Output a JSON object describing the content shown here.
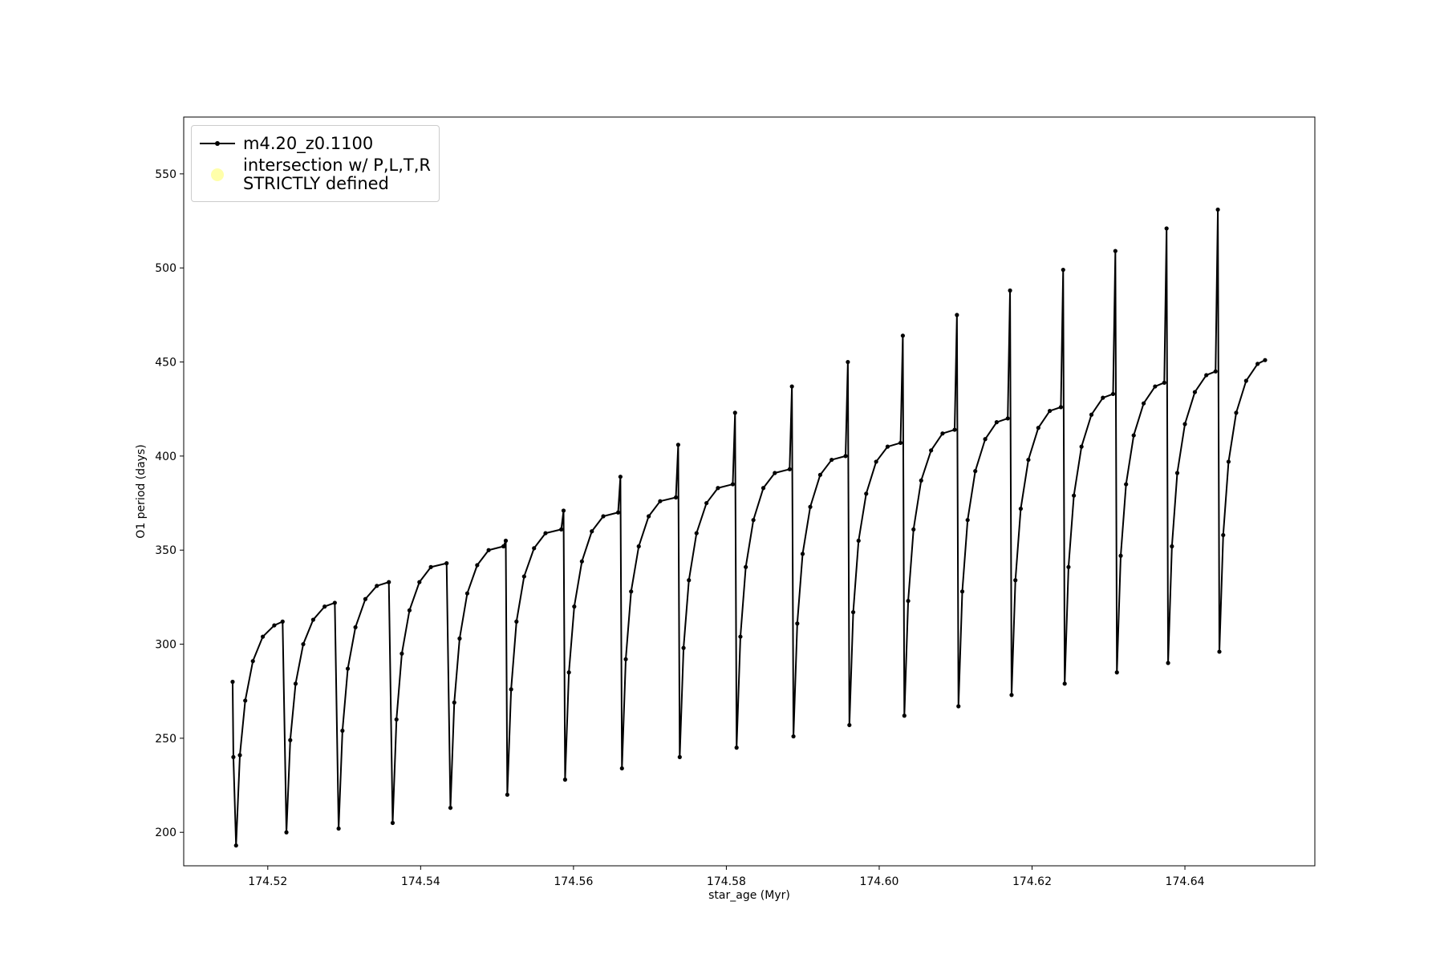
{
  "chart_data": {
    "type": "line",
    "xlabel": "star_age (Myr)",
    "ylabel": "O1 period (days)",
    "xlim": [
      174.509,
      174.657
    ],
    "ylim": [
      182.2,
      580.2
    ],
    "xticks": [
      174.52,
      174.54,
      174.56,
      174.58,
      {
        "value": 174.6,
        "label": "174.60"
      },
      174.62,
      174.64
    ],
    "yticks": [
      200,
      250,
      300,
      350,
      400,
      450,
      500,
      550
    ],
    "legend": "upper left",
    "series": [
      {
        "name": "m4.20_z0.1100",
        "color": "#000000",
        "marker": "dot",
        "x": [
          174.5154,
          174.5155,
          174.51585,
          174.51635,
          174.51705,
          174.51805,
          174.51935,
          174.52085,
          174.52194,
          174.52244,
          174.52294,
          174.52364,
          174.52464,
          174.52594,
          174.52744,
          174.52877,
          174.52927,
          174.52977,
          174.53047,
          174.53147,
          174.53277,
          174.53427,
          174.53584,
          174.53634,
          174.53684,
          174.53754,
          174.53854,
          174.53984,
          174.54134,
          174.5434,
          174.5439,
          174.5444,
          174.5451,
          174.5461,
          174.5474,
          174.5489,
          174.55084,
          174.55114,
          174.55134,
          174.55184,
          174.55254,
          174.55354,
          174.55484,
          174.55634,
          174.5584,
          174.5587,
          174.5589,
          174.5594,
          174.5601,
          174.5611,
          174.5624,
          174.5639,
          174.56584,
          174.56614,
          174.56634,
          174.56684,
          174.56754,
          174.56854,
          174.56984,
          174.57134,
          174.5734,
          174.5737,
          174.5739,
          174.5744,
          174.5751,
          174.5761,
          174.5774,
          174.5789,
          174.58084,
          174.58114,
          174.58134,
          174.58184,
          174.58254,
          174.58354,
          174.58484,
          174.58634,
          174.58828,
          174.58858,
          174.58878,
          174.58928,
          174.58998,
          174.59098,
          174.59228,
          174.59378,
          174.5956,
          174.5959,
          174.5961,
          174.5966,
          174.5973,
          174.5983,
          174.5996,
          174.6011,
          174.60279,
          174.60309,
          174.60329,
          174.60379,
          174.60449,
          174.60549,
          174.60679,
          174.60829,
          174.60987,
          174.61017,
          174.61037,
          174.61087,
          174.61157,
          174.61257,
          174.61387,
          174.61537,
          174.61682,
          174.61712,
          174.61732,
          174.61782,
          174.61852,
          174.61952,
          174.62082,
          174.62232,
          174.62377,
          174.62407,
          174.62427,
          174.62477,
          174.62547,
          174.62647,
          174.62777,
          174.62927,
          174.6306,
          174.6309,
          174.6311,
          174.6316,
          174.6323,
          174.6333,
          174.6346,
          174.6361,
          174.6373,
          174.6376,
          174.6378,
          174.6383,
          174.639,
          174.64,
          174.6413,
          174.6428,
          174.64401,
          174.64431,
          174.64451,
          174.64501,
          174.64571,
          174.64671,
          174.64801,
          174.64951,
          174.65049
        ],
        "values": [
          280,
          240,
          193,
          241,
          270,
          291,
          304,
          310,
          312,
          200,
          249,
          279,
          300,
          313,
          320,
          322,
          202,
          254,
          287,
          309,
          324,
          331,
          333,
          205,
          260,
          295,
          318,
          333,
          341,
          343,
          213,
          269,
          303,
          327,
          342,
          350,
          352,
          355,
          220,
          276,
          312,
          336,
          351,
          359,
          361,
          371,
          228,
          285,
          320,
          344,
          360,
          368,
          370,
          389,
          234,
          292,
          328,
          352,
          368,
          376,
          378,
          406,
          240,
          298,
          334,
          359,
          375,
          383,
          385,
          423,
          245,
          304,
          341,
          366,
          383,
          391,
          393,
          437,
          251,
          311,
          348,
          373,
          390,
          398,
          400,
          450,
          257,
          317,
          355,
          380,
          397,
          405,
          407,
          464,
          262,
          323,
          361,
          387,
          403,
          412,
          414,
          475,
          267,
          328,
          366,
          392,
          409,
          418,
          420,
          488,
          273,
          334,
          372,
          398,
          415,
          424,
          426,
          499,
          279,
          341,
          379,
          405,
          422,
          431,
          433,
          509,
          285,
          347,
          385,
          411,
          428,
          437,
          439,
          521,
          290,
          352,
          391,
          417,
          434,
          443,
          445,
          531,
          296,
          358,
          397,
          423,
          440,
          449,
          451
        ]
      },
      {
        "name": "intersection w/ P,L,T,R\nSTRICTLY defined",
        "color": "#ffffaa",
        "marker": "circle"
      }
    ]
  }
}
